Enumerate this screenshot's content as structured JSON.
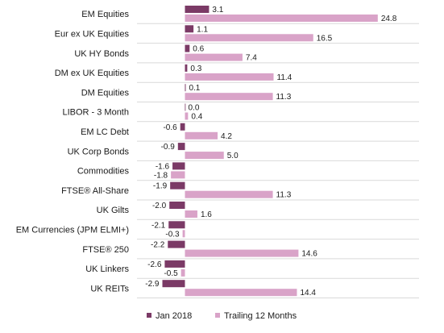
{
  "chart_data": {
    "type": "bar",
    "orientation": "horizontal",
    "categories": [
      "EM Equities",
      "Eur ex UK Equities",
      "UK HY Bonds",
      "DM ex UK Equities",
      "DM Equities",
      "LIBOR - 3 Month",
      "EM LC Debt",
      "UK Corp Bonds",
      "Commodities",
      "FTSE® All-Share",
      "UK Gilts",
      "EM Currencies (JPM ELMI+)",
      "FTSE® 250",
      "UK Linkers",
      "UK REITs"
    ],
    "series": [
      {
        "name": "Jan 2018",
        "color": "#7b3a66",
        "values": [
          3.1,
          1.1,
          0.6,
          0.3,
          0.1,
          0.0,
          -0.6,
          -0.9,
          -1.6,
          -1.9,
          -2.0,
          -2.1,
          -2.2,
          -2.6,
          -2.9
        ],
        "labels": [
          "3.1",
          "1.1",
          "0.6",
          "0.3",
          "0.1",
          "0.0",
          "-0.6",
          "-0.9",
          "-1.6",
          "-1.9",
          "-2.0",
          "-2.1",
          "-2.2",
          "-2.6",
          "-2.9"
        ]
      },
      {
        "name": "Trailing 12 Months",
        "color": "#d9a3c8",
        "values": [
          24.8,
          16.5,
          7.4,
          11.4,
          11.3,
          0.4,
          4.2,
          5.0,
          -1.8,
          11.3,
          1.6,
          -0.3,
          14.6,
          -0.5,
          14.4
        ],
        "labels": [
          "24.8",
          "16.5",
          "7.4",
          "11.4",
          "11.3",
          "0.4",
          "4.2",
          "5.0",
          "-1.8",
          "11.3",
          "1.6",
          "-0.3",
          "14.6",
          "-0.5",
          "14.4"
        ]
      }
    ],
    "title": "",
    "xlabel": "",
    "ylabel": "",
    "grid": false,
    "legend_position": "bottom"
  }
}
